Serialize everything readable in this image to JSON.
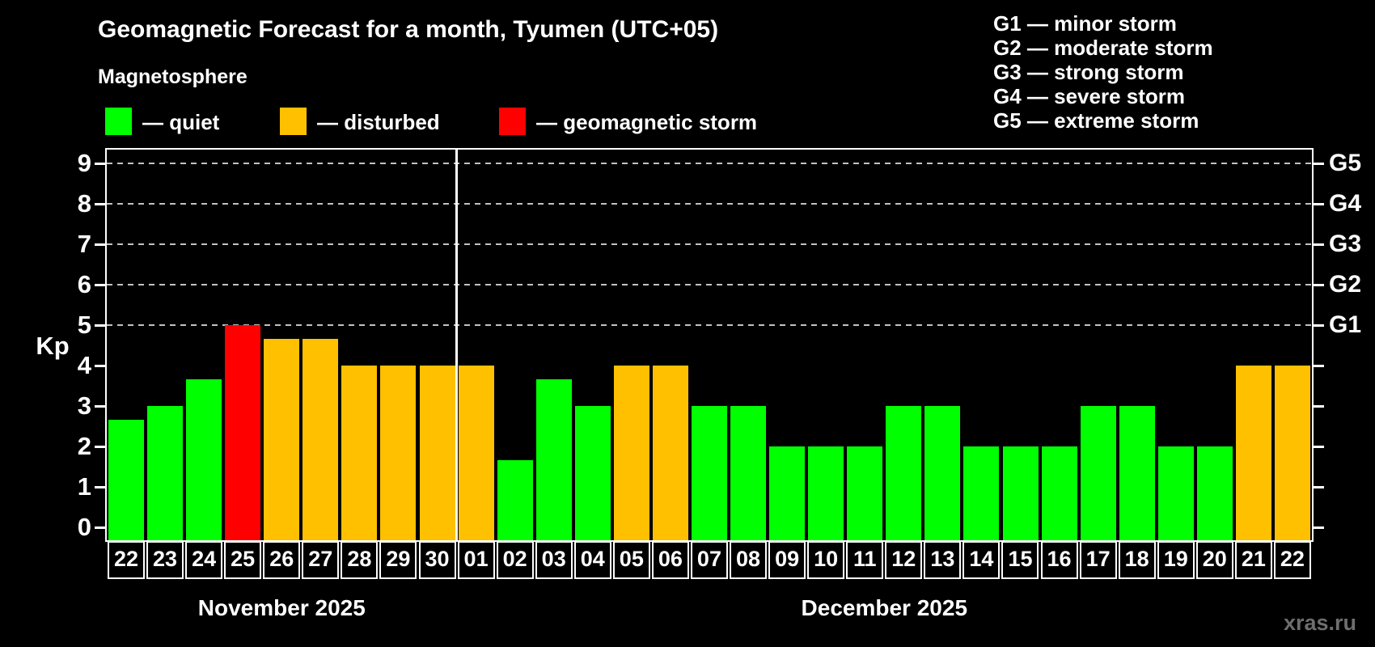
{
  "title": "Geomagnetic Forecast for a month, Tyumen (UTC+05)",
  "subtitle": "Magnetosphere",
  "legend": {
    "items": [
      {
        "label": "— quiet",
        "status": "quiet",
        "color": "#00ff00"
      },
      {
        "label": "— disturbed",
        "status": "disturbed",
        "color": "#ffc000"
      },
      {
        "label": "— geomagnetic storm",
        "status": "storm",
        "color": "#ff0000"
      }
    ]
  },
  "storm_legend": {
    "items": [
      "G1 — minor storm",
      "G2 — moderate storm",
      "G3 — strong storm",
      "G4 — severe storm",
      "G5 — extreme storm"
    ]
  },
  "watermark": "xras.ru",
  "chart_data": {
    "type": "bar",
    "title": "Geomagnetic Forecast for a month, Tyumen (UTC+05)",
    "ylabel": "Kp",
    "ylim": [
      0,
      9
    ],
    "yticks": [
      0,
      1,
      2,
      3,
      4,
      5,
      6,
      7,
      8,
      9
    ],
    "gridlines_at": [
      5,
      6,
      7,
      8,
      9
    ],
    "grid": "dashed, only at storm levels G1–G5",
    "legend_position": "top-left and top-right",
    "right_axis_labels": [
      {
        "kp": 5,
        "label": "G1"
      },
      {
        "kp": 6,
        "label": "G2"
      },
      {
        "kp": 7,
        "label": "G3"
      },
      {
        "kp": 8,
        "label": "G4"
      },
      {
        "kp": 9,
        "label": "G5"
      }
    ],
    "status_colors": {
      "quiet": "#00ff00",
      "disturbed": "#ffc000",
      "storm": "#ff0000"
    },
    "months": [
      {
        "label": "November 2025",
        "days": 9
      },
      {
        "label": "December 2025",
        "days": 22
      }
    ],
    "points": [
      {
        "month": "November 2025",
        "day": "22",
        "kp": 2.67,
        "status": "quiet"
      },
      {
        "month": "November 2025",
        "day": "23",
        "kp": 3.0,
        "status": "quiet"
      },
      {
        "month": "November 2025",
        "day": "24",
        "kp": 3.67,
        "status": "quiet"
      },
      {
        "month": "November 2025",
        "day": "25",
        "kp": 5.0,
        "status": "storm"
      },
      {
        "month": "November 2025",
        "day": "26",
        "kp": 4.67,
        "status": "disturbed"
      },
      {
        "month": "November 2025",
        "day": "27",
        "kp": 4.67,
        "status": "disturbed"
      },
      {
        "month": "November 2025",
        "day": "28",
        "kp": 4.0,
        "status": "disturbed"
      },
      {
        "month": "November 2025",
        "day": "29",
        "kp": 4.0,
        "status": "disturbed"
      },
      {
        "month": "November 2025",
        "day": "30",
        "kp": 4.0,
        "status": "disturbed"
      },
      {
        "month": "December 2025",
        "day": "01",
        "kp": 4.0,
        "status": "disturbed"
      },
      {
        "month": "December 2025",
        "day": "02",
        "kp": 1.67,
        "status": "quiet"
      },
      {
        "month": "December 2025",
        "day": "03",
        "kp": 3.67,
        "status": "quiet"
      },
      {
        "month": "December 2025",
        "day": "04",
        "kp": 3.0,
        "status": "quiet"
      },
      {
        "month": "December 2025",
        "day": "05",
        "kp": 4.0,
        "status": "disturbed"
      },
      {
        "month": "December 2025",
        "day": "06",
        "kp": 4.0,
        "status": "disturbed"
      },
      {
        "month": "December 2025",
        "day": "07",
        "kp": 3.0,
        "status": "quiet"
      },
      {
        "month": "December 2025",
        "day": "08",
        "kp": 3.0,
        "status": "quiet"
      },
      {
        "month": "December 2025",
        "day": "09",
        "kp": 2.0,
        "status": "quiet"
      },
      {
        "month": "December 2025",
        "day": "10",
        "kp": 2.0,
        "status": "quiet"
      },
      {
        "month": "December 2025",
        "day": "11",
        "kp": 2.0,
        "status": "quiet"
      },
      {
        "month": "December 2025",
        "day": "12",
        "kp": 3.0,
        "status": "quiet"
      },
      {
        "month": "December 2025",
        "day": "13",
        "kp": 3.0,
        "status": "quiet"
      },
      {
        "month": "December 2025",
        "day": "14",
        "kp": 2.0,
        "status": "quiet"
      },
      {
        "month": "December 2025",
        "day": "15",
        "kp": 2.0,
        "status": "quiet"
      },
      {
        "month": "December 2025",
        "day": "16",
        "kp": 2.0,
        "status": "quiet"
      },
      {
        "month": "December 2025",
        "day": "17",
        "kp": 3.0,
        "status": "quiet"
      },
      {
        "month": "December 2025",
        "day": "18",
        "kp": 3.0,
        "status": "quiet"
      },
      {
        "month": "December 2025",
        "day": "19",
        "kp": 2.0,
        "status": "quiet"
      },
      {
        "month": "December 2025",
        "day": "20",
        "kp": 2.0,
        "status": "quiet"
      },
      {
        "month": "December 2025",
        "day": "21",
        "kp": 4.0,
        "status": "disturbed"
      },
      {
        "month": "December 2025",
        "day": "22",
        "kp": 4.0,
        "status": "disturbed"
      }
    ]
  }
}
